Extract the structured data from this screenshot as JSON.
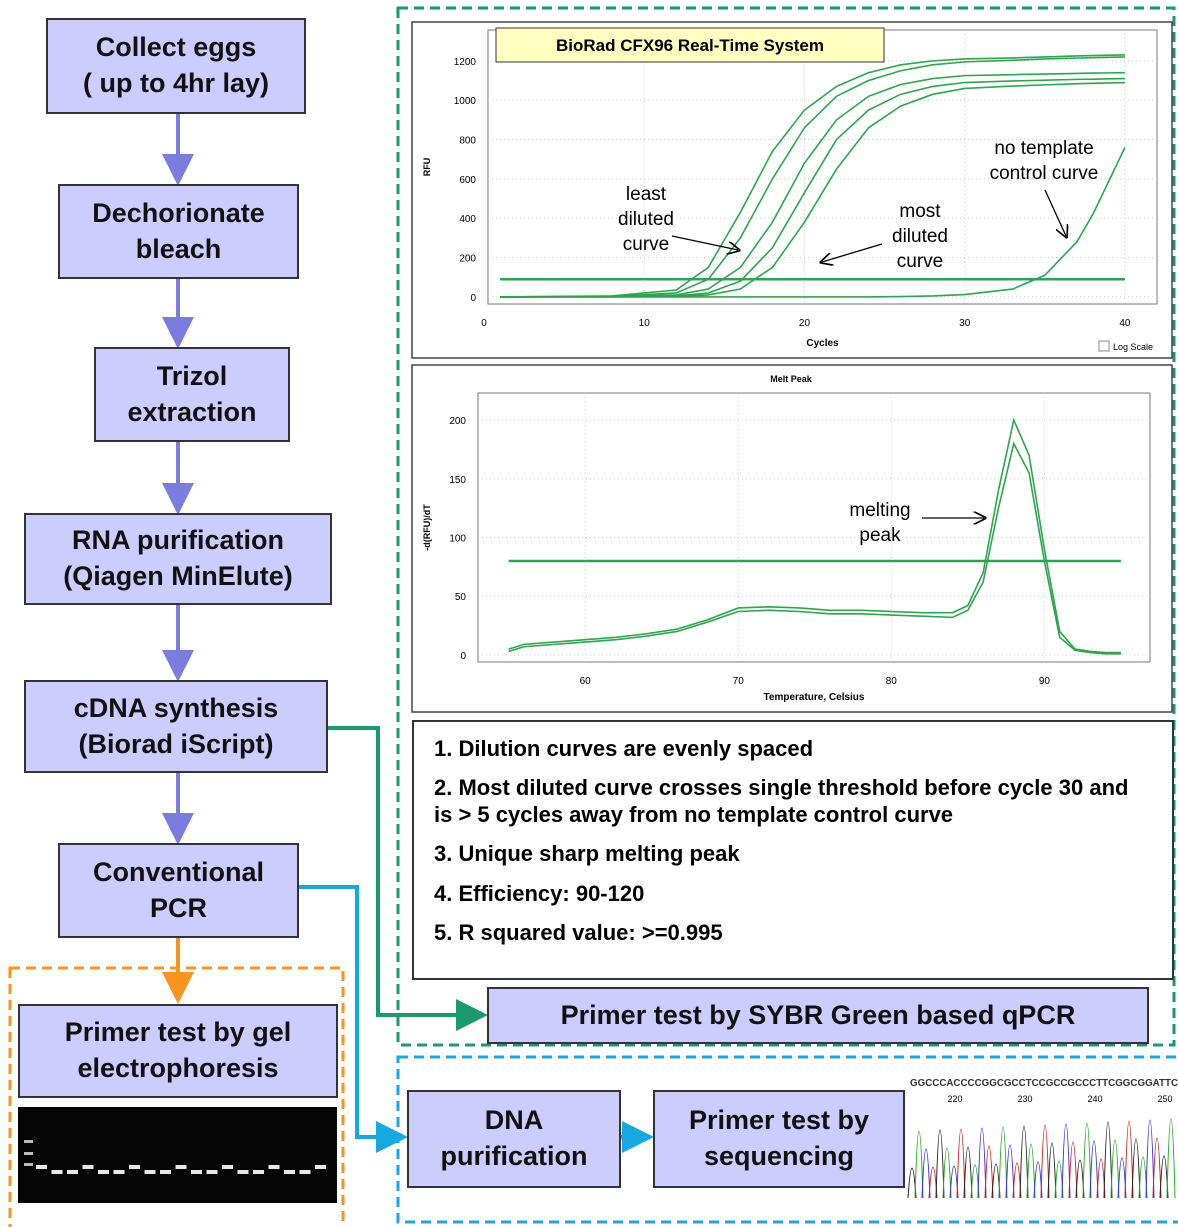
{
  "flow": {
    "steps": [
      {
        "lines": [
          "Collect eggs",
          "( up to 4hr lay)"
        ]
      },
      {
        "lines": [
          "Dechorionate",
          "bleach"
        ]
      },
      {
        "lines": [
          "Trizol",
          "extraction"
        ]
      },
      {
        "lines": [
          "RNA purification",
          "(Qiagen MinElute)"
        ]
      },
      {
        "lines": [
          "cDNA synthesis",
          "(Biorad iScript)"
        ]
      },
      {
        "lines": [
          "Conventional",
          "PCR"
        ]
      },
      {
        "lines": [
          "Primer test by gel",
          "electrophoresis"
        ]
      }
    ]
  },
  "amplification_plot": {
    "type": "line",
    "title": "BioRad CFX96 Real-Time System",
    "x_label": "Cycles",
    "y_label": "RFU",
    "log_scale_label": "Log Scale",
    "color": "#2da44e",
    "x": [
      1,
      8,
      12,
      14,
      16,
      18,
      20,
      22,
      24,
      26,
      28,
      30,
      33,
      35,
      37,
      38,
      39,
      40
    ],
    "series": [
      {
        "values": [
          0,
          5,
          35,
          150,
          430,
          740,
          950,
          1070,
          1140,
          1180,
          1200,
          1210,
          1215,
          1220,
          1225,
          1227,
          1229,
          1230
        ]
      },
      {
        "values": [
          0,
          3,
          20,
          90,
          300,
          600,
          860,
          1020,
          1100,
          1150,
          1180,
          1195,
          1203,
          1210,
          1214,
          1216,
          1218,
          1220
        ]
      },
      {
        "values": [
          0,
          2,
          10,
          40,
          150,
          380,
          680,
          900,
          1020,
          1080,
          1110,
          1125,
          1130,
          1133,
          1136,
          1138,
          1139,
          1140
        ]
      },
      {
        "values": [
          0,
          1,
          5,
          20,
          80,
          250,
          530,
          800,
          950,
          1030,
          1070,
          1090,
          1098,
          1102,
          1106,
          1107,
          1109,
          1110
        ]
      },
      {
        "values": [
          0,
          0,
          3,
          10,
          40,
          150,
          380,
          650,
          860,
          970,
          1030,
          1060,
          1072,
          1078,
          1084,
          1086,
          1088,
          1090
        ]
      },
      {
        "values": [
          0,
          0,
          0,
          0,
          0,
          0,
          0,
          0,
          0,
          2,
          5,
          12,
          40,
          110,
          280,
          420,
          590,
          760
        ]
      }
    ],
    "threshold": 90,
    "xlim": [
      0.25,
      42
    ],
    "ylim": [
      -36,
      1357
    ],
    "xticks": [
      0,
      10,
      20,
      30,
      40
    ],
    "yticks": [
      0,
      200,
      400,
      600,
      800,
      1000,
      1200
    ],
    "annotations": [
      {
        "lines": [
          "least",
          "diluted",
          "curve"
        ]
      },
      {
        "lines": [
          "most",
          "diluted",
          "curve"
        ]
      },
      {
        "lines": [
          "no template",
          "control curve"
        ]
      }
    ]
  },
  "melt_plot": {
    "type": "line",
    "title": "Melt Peak",
    "x_label": "Temperature, Celsius",
    "y_label": "-d(RFU)/dT",
    "color": "#2da44e",
    "x": [
      55,
      56,
      58,
      60,
      62,
      64,
      66,
      68,
      70,
      72,
      74,
      76,
      78,
      80,
      82,
      84,
      85,
      86,
      87,
      88,
      89,
      90,
      91,
      92,
      93,
      94,
      95
    ],
    "series": [
      {
        "values": [
          5,
          9,
          11,
          13,
          15,
          18,
          22,
          30,
          40,
          41,
          40,
          38,
          38,
          37,
          36,
          36,
          42,
          70,
          140,
          200,
          170,
          90,
          20,
          5,
          3,
          2,
          2
        ]
      },
      {
        "values": [
          3,
          7,
          9,
          11,
          13,
          16,
          20,
          28,
          37,
          38,
          37,
          35,
          35,
          34,
          33,
          32,
          38,
          62,
          125,
          180,
          155,
          80,
          15,
          4,
          2,
          1,
          1
        ]
      }
    ],
    "threshold": 80,
    "xlim": [
      53,
      96.9
    ],
    "ylim": [
      -6,
      223
    ],
    "xticks": [
      60,
      70,
      80,
      90
    ],
    "yticks": [
      0,
      50,
      100,
      150,
      200
    ],
    "annotations": [
      {
        "lines": [
          "melting",
          "peak"
        ]
      }
    ]
  },
  "criteria": [
    "1. Dilution curves are evenly spaced",
    "2. Most diluted curve crosses single threshold before cycle 30 and is > 5 cycles away from no template control curve",
    "3. Unique sharp melting peak",
    "4. Efficiency: 90-120",
    "5. R squared value: >=0.995"
  ],
  "qpcr_box": "Primer test by SYBR Green based qPCR",
  "sequencing": {
    "steps": [
      {
        "lines": [
          "DNA",
          "purification"
        ]
      },
      {
        "lines": [
          "Primer test by",
          "sequencing"
        ]
      }
    ],
    "sequence": "GGCCCACCCCGGCGCCTCCGCCGCCCTTCGGCGGATTC",
    "positions": [
      220,
      230,
      240,
      250
    ]
  }
}
